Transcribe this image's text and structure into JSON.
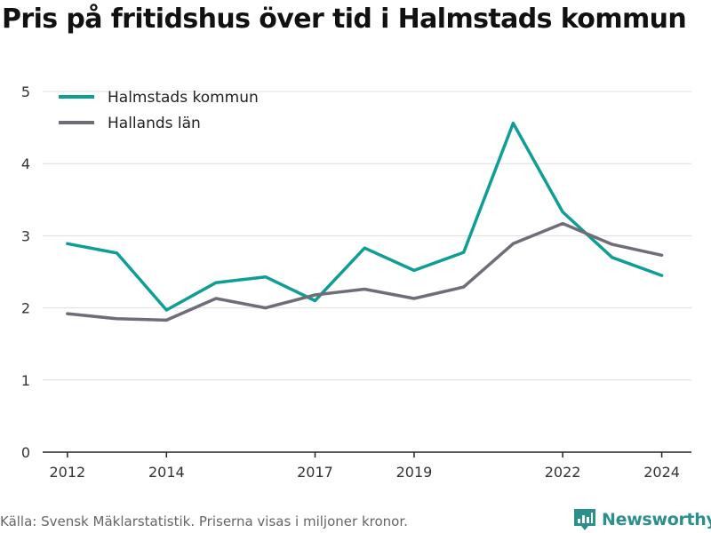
{
  "title": "Pris på fritidshus över tid i Halmstads kommun",
  "footer": {
    "source_text": "Källa: Svensk Mäklarstatistik. Priserna visas i miljoner kronor.",
    "brand": "Newsworthy"
  },
  "colors": {
    "halmstad": "#0f9e96",
    "halland": "#6e6e78",
    "grid": "#dddddd",
    "axis": "#222222",
    "brand": "#2b8f8c"
  },
  "chart_data": {
    "type": "line",
    "title": "Pris på fritidshus över tid i Halmstads kommun",
    "xlabel": "",
    "ylabel": "",
    "x": [
      2012,
      2013,
      2014,
      2015,
      2016,
      2017,
      2018,
      2019,
      2020,
      2021,
      2022,
      2023,
      2024
    ],
    "x_ticks": [
      2012,
      2014,
      2017,
      2019,
      2022,
      2024
    ],
    "y_ticks": [
      0,
      1,
      2,
      3,
      4,
      5
    ],
    "xlim": [
      2011.5,
      2024.6
    ],
    "ylim": [
      0,
      5
    ],
    "grid": true,
    "legend": "top-left",
    "series": [
      {
        "name": "Halmstads kommun",
        "color": "#0f9e96",
        "values": [
          2.89,
          2.76,
          1.97,
          2.35,
          2.43,
          2.1,
          2.83,
          2.52,
          2.77,
          4.56,
          3.33,
          2.7,
          2.45
        ]
      },
      {
        "name": "Hallands län",
        "color": "#6e6e78",
        "values": [
          1.92,
          1.85,
          1.83,
          2.13,
          2.0,
          2.18,
          2.26,
          2.13,
          2.29,
          2.89,
          3.17,
          2.88,
          2.73
        ]
      }
    ]
  }
}
